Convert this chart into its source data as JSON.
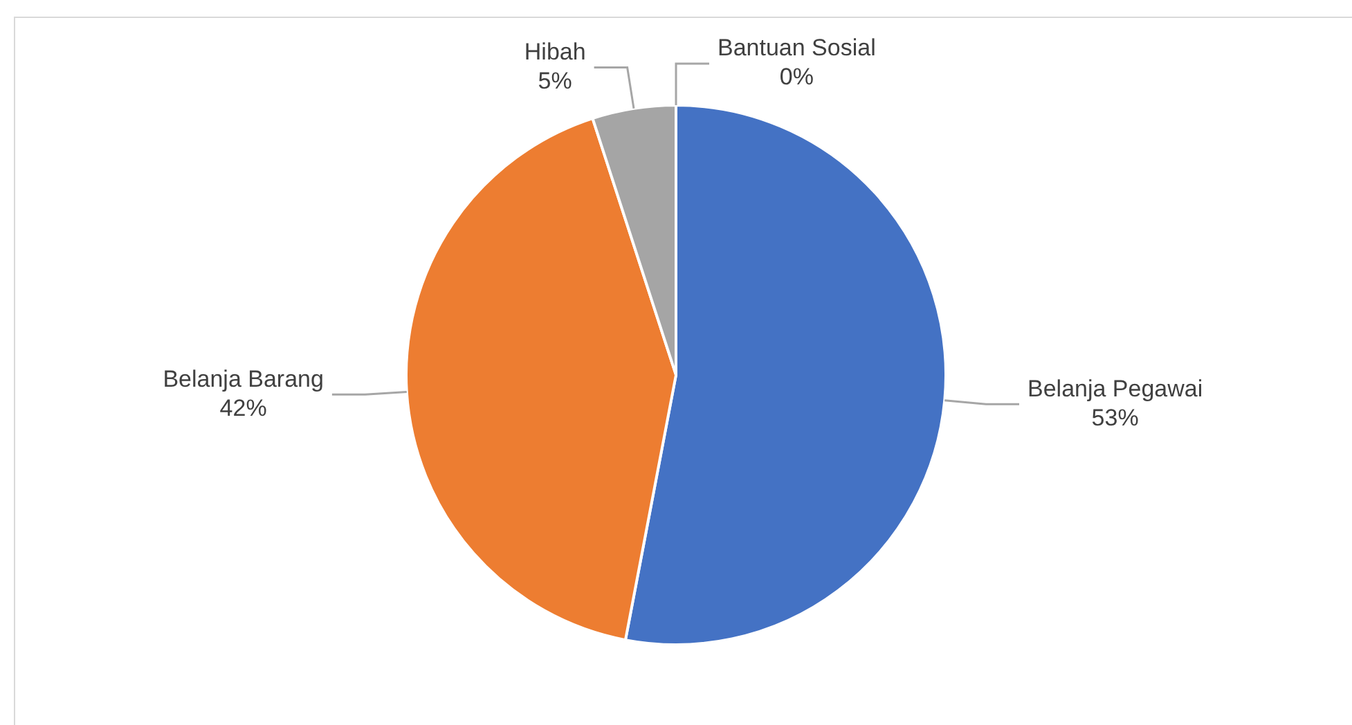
{
  "chart_data": {
    "type": "pie",
    "categories": [
      "Belanja Pegawai",
      "Belanja Barang",
      "Hibah",
      "Bantuan Sosial"
    ],
    "values": [
      53,
      42,
      5,
      0
    ],
    "value_labels": [
      "53%",
      "42%",
      "5%",
      "0%"
    ],
    "colors": [
      "#4472c4",
      "#ed7d31",
      "#a5a5a5",
      "#ffc000"
    ],
    "legend": false
  }
}
